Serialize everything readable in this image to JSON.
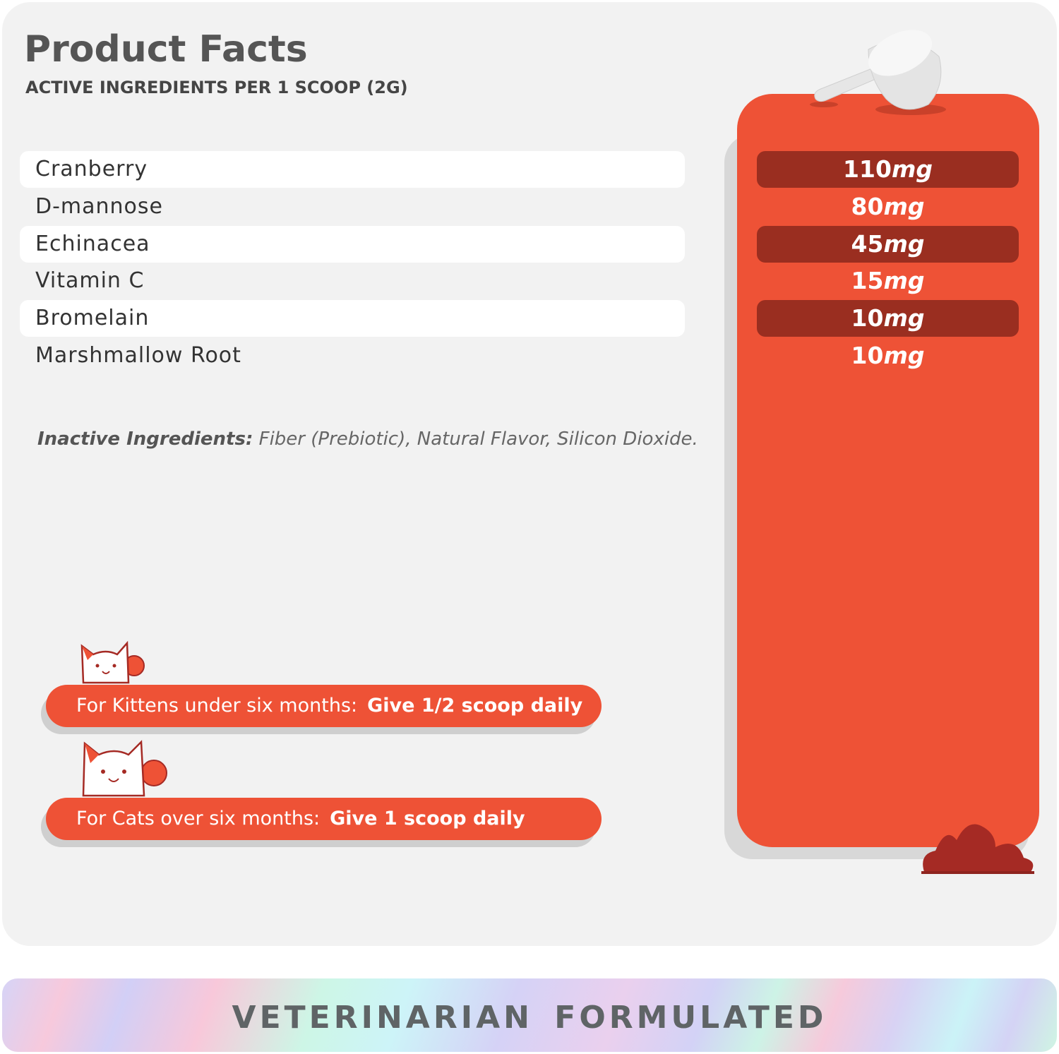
{
  "header": {
    "title": "Product Facts",
    "subtitle": "ACTIVE INGREDIENTS PER 1 SCOOP (2G)"
  },
  "ingredients": [
    {
      "name": "Cranberry",
      "amount": "110",
      "unit": "mg"
    },
    {
      "name": "D-mannose",
      "amount": "80",
      "unit": "mg"
    },
    {
      "name": "Echinacea",
      "amount": "45",
      "unit": "mg"
    },
    {
      "name": "Vitamin C",
      "amount": "15",
      "unit": "mg"
    },
    {
      "name": "Bromelain",
      "amount": "10",
      "unit": "mg"
    },
    {
      "name": "Marshmallow Root",
      "amount": "10",
      "unit": "mg"
    }
  ],
  "inactive": {
    "label": "Inactive Ingredients:",
    "text": "Fiber (Prebiotic), Natural Flavor, Silicon Dioxide."
  },
  "dosage": [
    {
      "label": "For Kittens under six months:",
      "dose": "Give 1/2 scoop daily"
    },
    {
      "label": "For Cats over six months:",
      "dose": "Give 1 scoop daily"
    }
  ],
  "banner": {
    "text": "VETERINARIAN FORMULATED"
  },
  "colors": {
    "accent": "#ee5236",
    "dark_accent": "#9a2e20",
    "panel": "#f2f2f2"
  }
}
